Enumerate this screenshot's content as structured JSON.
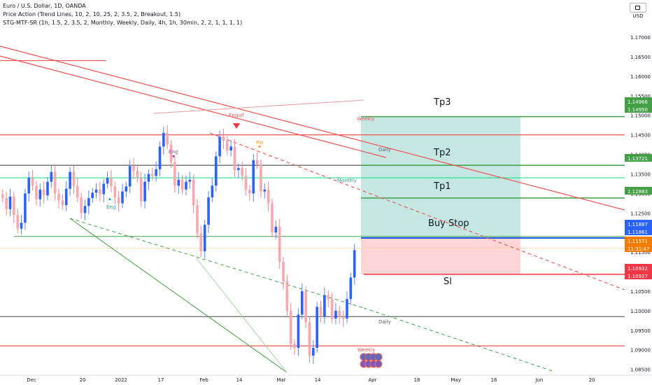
{
  "header": {
    "symbol_line": "Euro / U.S. Dollar, 1D, OANDA",
    "indicator_1": "Price Action (Trend Lines, 10, 2, 10, 25, 2, 3.5, 2, Breakout, 1.5)",
    "indicator_2": "STG-MTF-SR (1h, 1.5, 2, 3.5, 2, Monthly, Weekly, Daily, 4h, 1h, 30min, 2, 2, 1, 1, 1, 1)"
  },
  "currency_button": "USD",
  "colors": {
    "up": "#2962ff",
    "down": "#f23645",
    "green": "#43a047",
    "red": "#ef5350",
    "target_fill": "#b2dfdb",
    "stop_fill": "#fccbcd",
    "entry": "#1e53e5",
    "current_price": "#f57c00"
  },
  "chart_data": {
    "type": "candlestick",
    "symbol": "EURUSD",
    "timeframe": "1D",
    "y_axis": {
      "range": [
        1.0835,
        1.1795
      ],
      "ticks": [
        "1.17000",
        "1.16500",
        "1.16000",
        "1.15500",
        "1.15000",
        "1.14500",
        "1.14000",
        "1.13500",
        "1.13000",
        "1.12500",
        "1.12000",
        "1.11500",
        "1.11000",
        "1.10500",
        "1.10000",
        "1.09500",
        "1.09000",
        "1.08500"
      ]
    },
    "x_axis": {
      "ticks": [
        "Dec",
        "20",
        "2022",
        "17",
        "Feb",
        "14",
        "Mar",
        "14",
        "Apr",
        "18",
        "May",
        "16",
        "Jun",
        "20"
      ]
    },
    "candles_close": [
      1.1288,
      1.126,
      1.1292,
      1.1245,
      1.121,
      1.1225,
      1.13,
      1.134,
      1.132,
      1.1285,
      1.131,
      1.1295,
      1.133,
      1.1355,
      1.13,
      1.1282,
      1.127,
      1.1312,
      1.1355,
      1.132,
      1.129,
      1.125,
      1.1268,
      1.1288,
      1.1302,
      1.131,
      1.1298,
      1.1325,
      1.134,
      1.1318,
      1.129,
      1.1275,
      1.1305,
      1.1318,
      1.137,
      1.1358,
      1.134,
      1.128,
      1.133,
      1.135,
      1.1345,
      1.1362,
      1.142,
      1.1455,
      1.1425,
      1.138,
      1.132,
      1.1335,
      1.131,
      1.133,
      1.1335,
      1.127,
      1.1198,
      1.1152,
      1.122,
      1.129,
      1.132,
      1.1395,
      1.1445,
      1.1435,
      1.141,
      1.142,
      1.136,
      1.1365,
      1.1345,
      1.131,
      1.13,
      1.1385,
      1.1375,
      1.1305,
      1.131,
      1.1275,
      1.12,
      1.1215,
      1.1125,
      1.1075,
      1.1,
      1.0915,
      1.0905,
      1.099,
      1.105,
      1.097,
      1.0885,
      1.0905,
      1.101,
      1.0985,
      1.104,
      1.103,
      1.098,
      1.1,
      1.0985,
      1.098,
      1.103,
      1.1085,
      1.1155
    ],
    "levels": [
      {
        "label": "Tp3",
        "price": 1.14966
      },
      {
        "label": "",
        "price": 1.1495
      },
      {
        "label": "Tp2",
        "price": 1.13721
      },
      {
        "label": "Tp1",
        "price": 1.12883
      },
      {
        "label": "",
        "price": 1.11887
      },
      {
        "label": "Buy Stop",
        "price": 1.11861
      },
      {
        "label": "",
        "price": 1.11571
      },
      {
        "label": "Sl",
        "price": 1.10932
      },
      {
        "label": "",
        "price": 1.10927
      }
    ],
    "price_tags": [
      {
        "text": "1.14966",
        "color": "#43a047"
      },
      {
        "text": "1.14950",
        "color": "#43a047"
      },
      {
        "text": "1.13721",
        "color": "#43a047"
      },
      {
        "text": "1.12883",
        "color": "#43a047"
      },
      {
        "text": "1.11887",
        "color": "#2962ff"
      },
      {
        "text": "1.11861",
        "color": "#2962ff"
      },
      {
        "text": "1.11571",
        "color": "#f57c00"
      },
      {
        "text": "11:31:47",
        "color": "#f57c00"
      },
      {
        "text": "1.10932",
        "color": "#f23645"
      },
      {
        "text": "1.10927",
        "color": "#f23645"
      }
    ],
    "annotations": [
      {
        "text": "Tp3",
        "big": true
      },
      {
        "text": "Tp2",
        "big": true
      },
      {
        "text": "Tp1",
        "big": true
      },
      {
        "text": "Buy Stop",
        "big": true
      },
      {
        "text": "Sl",
        "big": true
      },
      {
        "text": "Weekly",
        "color": "#ef5350"
      },
      {
        "text": "Daily",
        "color": "#5d606b"
      },
      {
        "text": "Monthly",
        "color": "#26a69a"
      },
      {
        "text": "Daily",
        "color": "#5d606b"
      },
      {
        "text": "Weekly",
        "color": "#ef5350"
      },
      {
        "text": "Eng",
        "color": "#ab47bc"
      },
      {
        "text": "Eng",
        "color": "#26a69a"
      },
      {
        "text": "Pin",
        "color": "#ff9800"
      },
      {
        "text": "Engulf",
        "color": "#ef5350"
      }
    ]
  }
}
